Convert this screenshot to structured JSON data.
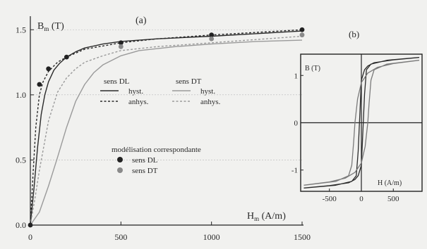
{
  "chart_data": [
    {
      "type": "line",
      "panel_label": "(a)",
      "ylabel_main": "B",
      "ylabel_sub": "m",
      "ylabel_unit": " (T)",
      "xlabel_main": "H",
      "xlabel_sub": "m",
      "xlabel_unit": " (A/m)",
      "xlim": [
        0,
        1500
      ],
      "ylim": [
        0,
        1.55
      ],
      "xticks": [
        0,
        500,
        1000,
        1500
      ],
      "xtick_labels": [
        "0",
        "500",
        "1000",
        "1500"
      ],
      "yticks": [
        0,
        0.5,
        1.0,
        1.5
      ],
      "ytick_labels": [
        "0.0",
        "0.5",
        "1.0",
        "1.5"
      ],
      "legend": {
        "groups": [
          {
            "title": "sens DL",
            "entries": [
              {
                "label": "hyst.",
                "style": "solid",
                "color": "#2a2a2a"
              },
              {
                "label": "anhys.",
                "style": "dashed",
                "color": "#2a2a2a"
              }
            ]
          },
          {
            "title": "sens DT",
            "entries": [
              {
                "label": "hyst.",
                "style": "solid",
                "color": "#9a9a9a"
              },
              {
                "label": "anhys.",
                "style": "dashed",
                "color": "#9a9a9a"
              }
            ]
          }
        ],
        "model_title": "modélisation correspondante",
        "model_entries": [
          {
            "label": "sens DL",
            "color": "#222222"
          },
          {
            "label": "sens DT",
            "color": "#8a8a8a"
          }
        ]
      },
      "series": [
        {
          "name": "sens DL hyst.",
          "style": "solid",
          "color": "#2a2a2a",
          "x": [
            0,
            20,
            40,
            60,
            80,
            100,
            130,
            160,
            200,
            250,
            300,
            400,
            500,
            700,
            1000,
            1250,
            1500
          ],
          "y": [
            0,
            0.28,
            0.6,
            0.85,
            1.0,
            1.1,
            1.19,
            1.24,
            1.29,
            1.33,
            1.36,
            1.39,
            1.41,
            1.43,
            1.45,
            1.47,
            1.49
          ]
        },
        {
          "name": "sens DL anhys.",
          "style": "dashed",
          "color": "#2a2a2a",
          "x": [
            0,
            15,
            30,
            50,
            70,
            100,
            150,
            200,
            300,
            500,
            700,
            1000,
            1500
          ],
          "y": [
            0,
            0.4,
            0.75,
            1.0,
            1.1,
            1.18,
            1.25,
            1.29,
            1.35,
            1.4,
            1.43,
            1.46,
            1.5
          ]
        },
        {
          "name": "sens DT hyst.",
          "style": "solid",
          "color": "#9a9a9a",
          "x": [
            0,
            50,
            100,
            150,
            200,
            250,
            300,
            350,
            400,
            500,
            600,
            800,
            1000,
            1250,
            1500
          ],
          "y": [
            0,
            0.1,
            0.3,
            0.52,
            0.75,
            0.95,
            1.08,
            1.17,
            1.23,
            1.3,
            1.34,
            1.37,
            1.39,
            1.41,
            1.42
          ]
        },
        {
          "name": "sens DT anhys.",
          "style": "dashed",
          "color": "#9a9a9a",
          "x": [
            0,
            25,
            50,
            100,
            150,
            200,
            250,
            300,
            400,
            500,
            700,
            1000,
            1500
          ],
          "y": [
            0,
            0.2,
            0.42,
            0.8,
            1.02,
            1.13,
            1.2,
            1.25,
            1.3,
            1.34,
            1.37,
            1.4,
            1.45
          ]
        }
      ],
      "points": [
        {
          "name": "modélisation sens DL",
          "color": "#222222",
          "x": [
            0,
            50,
            100,
            200,
            500,
            1000,
            1500
          ],
          "y": [
            0.0,
            1.08,
            1.2,
            1.29,
            1.4,
            1.46,
            1.5
          ]
        },
        {
          "name": "modélisation sens DT",
          "color": "#8a8a8a",
          "x": [
            500,
            1000,
            1500
          ],
          "y": [
            1.37,
            1.43,
            1.46
          ]
        }
      ]
    },
    {
      "type": "line",
      "panel_label": "(b)",
      "ylabel": "B (T)",
      "xlabel": "H (A/m)",
      "xlim": [
        -950,
        950
      ],
      "ylim": [
        -1.45,
        1.45
      ],
      "xticks": [
        -500,
        0,
        500
      ],
      "xtick_labels": [
        "-500",
        "0",
        "500"
      ],
      "yticks": [
        -1,
        0,
        1
      ],
      "ytick_labels": [
        "-1",
        "0",
        "1"
      ],
      "series": [
        {
          "name": "loop DL",
          "style": "solid",
          "color": "#2a2a2a",
          "x": [
            -900,
            -400,
            -150,
            -80,
            -50,
            -30,
            0,
            50,
            100,
            200,
            500,
            900,
            900,
            400,
            150,
            80,
            50,
            30,
            0,
            -50,
            -100,
            -200,
            -500,
            -900
          ],
          "y": [
            -1.38,
            -1.32,
            -1.24,
            -1.12,
            -0.6,
            0.0,
            0.9,
            1.12,
            1.2,
            1.27,
            1.33,
            1.38,
            1.38,
            1.32,
            1.24,
            1.12,
            0.6,
            0.0,
            -0.9,
            -1.12,
            -1.2,
            -1.27,
            -1.33,
            -1.38
          ]
        },
        {
          "name": "loop DT",
          "style": "solid",
          "color": "#7a7a7a",
          "x": [
            -900,
            -400,
            -200,
            -150,
            -120,
            -100,
            -60,
            0,
            100,
            250,
            500,
            900,
            900,
            400,
            200,
            150,
            120,
            100,
            60,
            0,
            -100,
            -250,
            -500,
            -900
          ],
          "y": [
            -1.32,
            -1.24,
            -1.12,
            -0.9,
            -0.4,
            0.0,
            0.5,
            0.85,
            1.05,
            1.17,
            1.25,
            1.32,
            1.32,
            1.24,
            1.12,
            0.9,
            0.4,
            0.0,
            -0.5,
            -0.85,
            -1.05,
            -1.17,
            -1.25,
            -1.32
          ]
        }
      ]
    }
  ]
}
